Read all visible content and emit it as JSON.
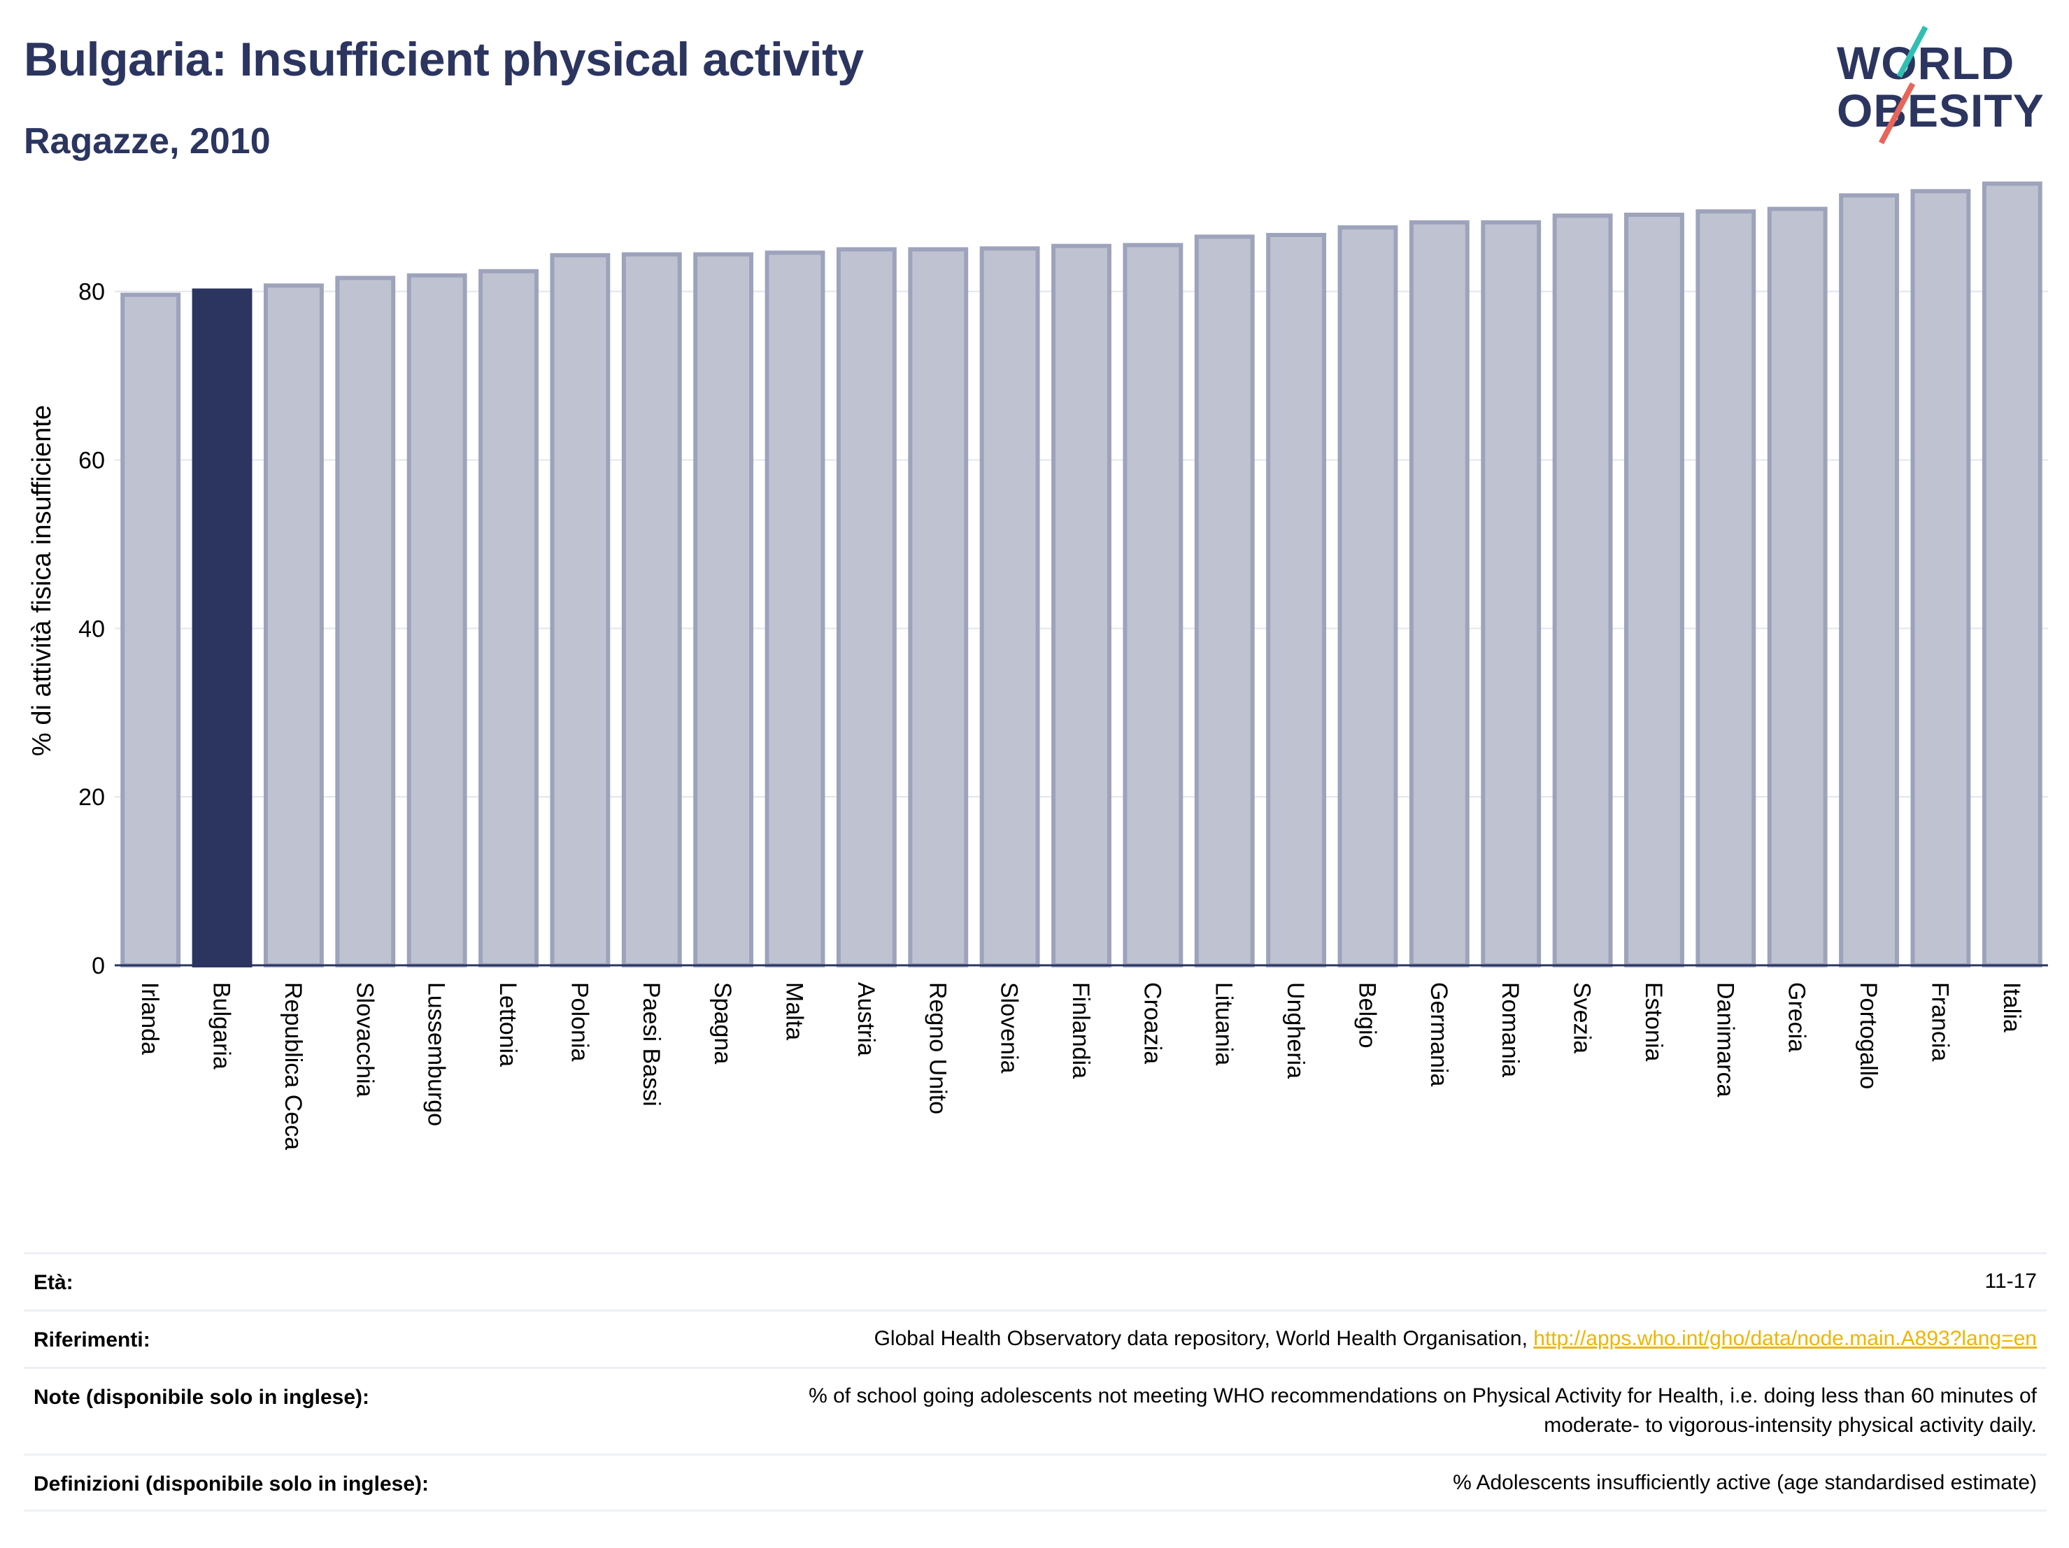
{
  "header": {
    "title": "Bulgaria: Insufficient physical activity",
    "subtitle": "Ragazze, 2010"
  },
  "logo": {
    "line1": "WORLD",
    "line2": "OBESITY"
  },
  "colors": {
    "bar": "#bfc3d1",
    "bar_stroke": "#9da3bb",
    "highlight": "#2b3560",
    "grid": "#e3e5ec",
    "text_dark": "#2b3560",
    "link": "#f0b400"
  },
  "chart_data": {
    "type": "bar",
    "ylabel": "% di attività fisica insufficiente",
    "ylim": [
      0,
      95
    ],
    "yticks": [
      0,
      20,
      40,
      60,
      80
    ],
    "highlight": "Bulgaria",
    "categories": [
      "Irlanda",
      "Bulgaria",
      "Republica Ceca",
      "Slovacchia",
      "Lussemburgo",
      "Lettonia",
      "Polonia",
      "Paesi Bassi",
      "Spagna",
      "Malta",
      "Austria",
      "Regno Unito",
      "Slovenia",
      "Finlandia",
      "Croazia",
      "Lituania",
      "Ungheria",
      "Belgio",
      "Germania",
      "Romania",
      "Svezia",
      "Estonia",
      "Danimarca",
      "Grecia",
      "Portogallo",
      "Francia",
      "Italia"
    ],
    "values": [
      79.6,
      80.1,
      80.7,
      81.6,
      81.9,
      82.4,
      84.3,
      84.4,
      84.4,
      84.6,
      85.0,
      85.0,
      85.1,
      85.4,
      85.5,
      86.5,
      86.7,
      87.6,
      88.2,
      88.2,
      89.0,
      89.1,
      89.5,
      89.8,
      91.4,
      91.9,
      92.8
    ],
    "grid": true,
    "legend": "none"
  },
  "meta": {
    "age_label": "Età:",
    "age_value": "11-17",
    "ref_label": "Riferimenti:",
    "ref_text": "Global Health Observatory data repository, World Health Organisation,",
    "ref_link": "http://apps.who.int/gho/data/node.main.A893?lang=en",
    "notes_label": "Note (disponibile solo in inglese):",
    "notes_line1": "% of school going adolescents not meeting WHO recommendations on Physical Activity for Health, i.e. doing less than 60 minutes of",
    "notes_line2": "moderate- to vigorous-intensity physical activity daily.",
    "def_label": "Definizioni (disponibile solo in inglese):",
    "def_text": "% Adolescents insufficiently active (age standardised estimate)"
  }
}
